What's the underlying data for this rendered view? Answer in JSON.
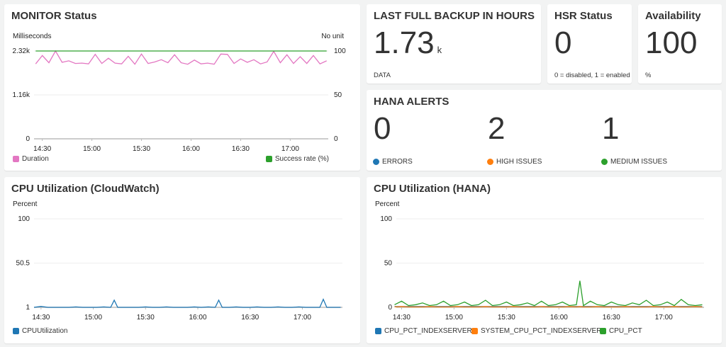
{
  "colors": {
    "pink": "#e377c2",
    "green": "#2ca02c",
    "blue": "#1f77b4",
    "orange": "#ff7f0e"
  },
  "monitor": {
    "title": "MONITOR Status",
    "left_unit": "Milliseconds",
    "right_unit": "No unit",
    "legend": [
      "Duration",
      "Success rate (%)"
    ]
  },
  "backup": {
    "title": "LAST FULL BACKUP IN HOURS",
    "value": "1.73",
    "unit": "k",
    "label": "DATA"
  },
  "hsr": {
    "title": "HSR Status",
    "value": "0",
    "label": "0 = disabled, 1 = enabled"
  },
  "availability": {
    "title": "Availability",
    "value": "100",
    "label": "%"
  },
  "alerts": {
    "title": "HANA ALERTS",
    "items": [
      {
        "value": "0",
        "label": "ERRORS",
        "color": "#1f77b4"
      },
      {
        "value": "2",
        "label": "HIGH ISSUES",
        "color": "#ff7f0e"
      },
      {
        "value": "1",
        "label": "MEDIUM ISSUES",
        "color": "#2ca02c"
      }
    ]
  },
  "cpu_cw": {
    "title": "CPU Utilization (CloudWatch)",
    "unit": "Percent",
    "legend": [
      "CPUUtilization"
    ]
  },
  "cpu_hana": {
    "title": "CPU Utilization (HANA)",
    "unit": "Percent",
    "legend": [
      "CPU_PCT_INDEXSERVER",
      "SYSTEM_CPU_PCT_INDEXSERVER",
      "CPU_PCT"
    ]
  },
  "chart_data": [
    {
      "type": "line",
      "title": "MONITOR Status",
      "ylabel": "Milliseconds",
      "y2label": "No unit",
      "ylim": [
        0,
        2320
      ],
      "y2lim": [
        0,
        100
      ],
      "yticks": [
        "0",
        "1.16k",
        "2.32k"
      ],
      "y2ticks": [
        "0",
        "50",
        "100"
      ],
      "xticks": [
        "14:30",
        "15:00",
        "15:30",
        "16:00",
        "16:30",
        "17:00"
      ],
      "legend": "bottom",
      "x": [
        "14:26",
        "14:30",
        "14:34",
        "14:38",
        "14:42",
        "14:46",
        "14:50",
        "14:54",
        "14:58",
        "15:02",
        "15:06",
        "15:10",
        "15:14",
        "15:18",
        "15:22",
        "15:26",
        "15:30",
        "15:34",
        "15:38",
        "15:42",
        "15:46",
        "15:50",
        "15:54",
        "15:58",
        "16:02",
        "16:06",
        "16:10",
        "16:14",
        "16:18",
        "16:22",
        "16:26",
        "16:30",
        "16:34",
        "16:38",
        "16:42",
        "16:46",
        "16:50",
        "16:54",
        "16:58",
        "17:02",
        "17:06",
        "17:10",
        "17:14",
        "17:18",
        "17:22"
      ],
      "series": [
        {
          "name": "Duration",
          "axis": "left",
          "values": [
            1980,
            2200,
            2010,
            2320,
            2020,
            2060,
            1990,
            2000,
            1980,
            2230,
            1990,
            2130,
            2000,
            1980,
            2180,
            1970,
            2240,
            1990,
            2030,
            2090,
            2010,
            2220,
            2010,
            1970,
            2080,
            1980,
            2000,
            1970,
            2240,
            2230,
            1990,
            2110,
            2020,
            2090,
            1980,
            2030,
            2310,
            2010,
            2220,
            1990,
            2170,
            1990,
            2200,
            1980,
            2060
          ]
        },
        {
          "name": "Success rate (%)",
          "axis": "right",
          "values": [
            100,
            100,
            100,
            100,
            100,
            100,
            100,
            100,
            100,
            100,
            100,
            100,
            100,
            100,
            100,
            100,
            100,
            100,
            100,
            100,
            100,
            100,
            100,
            100,
            100,
            100,
            100,
            100,
            100,
            100,
            100,
            100,
            100,
            100,
            100,
            100,
            100,
            100,
            100,
            100,
            100,
            100,
            100,
            100,
            100
          ]
        }
      ]
    },
    {
      "type": "line",
      "title": "CPU Utilization (CloudWatch)",
      "ylabel": "Percent",
      "ylim": [
        1,
        100
      ],
      "yticks": [
        "1",
        "50.5",
        "100"
      ],
      "xticks": [
        "14:30",
        "15:00",
        "15:30",
        "16:00",
        "16:30",
        "17:00"
      ],
      "legend": "bottom",
      "x": [
        "14:26",
        "14:30",
        "14:34",
        "14:38",
        "14:42",
        "14:46",
        "14:50",
        "14:54",
        "14:58",
        "15:02",
        "15:06",
        "15:10",
        "15:12",
        "15:14",
        "15:18",
        "15:22",
        "15:26",
        "15:30",
        "15:34",
        "15:38",
        "15:42",
        "15:46",
        "15:50",
        "15:54",
        "15:58",
        "16:02",
        "16:06",
        "16:10",
        "16:12",
        "16:14",
        "16:18",
        "16:22",
        "16:26",
        "16:30",
        "16:34",
        "16:38",
        "16:42",
        "16:46",
        "16:50",
        "16:54",
        "16:58",
        "17:02",
        "17:06",
        "17:10",
        "17:12",
        "17:14",
        "17:18",
        "17:22"
      ],
      "series": [
        {
          "name": "CPUUtilization",
          "values": [
            1,
            2,
            1,
            1,
            1,
            1,
            1.5,
            1,
            1,
            1,
            1.5,
            1,
            9,
            1,
            1,
            1,
            1,
            1.5,
            1,
            1,
            1.5,
            1,
            1,
            1,
            1.5,
            1,
            1.5,
            1,
            9,
            1,
            1,
            1.5,
            1,
            1,
            1.5,
            1,
            1,
            1.5,
            1,
            1,
            1.5,
            1,
            1,
            1,
            10,
            1,
            1,
            1
          ]
        }
      ]
    },
    {
      "type": "line",
      "title": "CPU Utilization (HANA)",
      "ylabel": "Percent",
      "ylim": [
        0,
        100
      ],
      "yticks": [
        "0",
        "50",
        "100"
      ],
      "xticks": [
        "14:30",
        "15:00",
        "15:30",
        "16:00",
        "16:30",
        "17:00"
      ],
      "legend": "bottom",
      "x": [
        "14:26",
        "14:30",
        "14:34",
        "14:38",
        "14:42",
        "14:46",
        "14:50",
        "14:54",
        "14:58",
        "15:02",
        "15:06",
        "15:10",
        "15:14",
        "15:18",
        "15:22",
        "15:26",
        "15:30",
        "15:34",
        "15:38",
        "15:42",
        "15:46",
        "15:50",
        "15:54",
        "15:58",
        "16:02",
        "16:06",
        "16:10",
        "16:12",
        "16:14",
        "16:18",
        "16:22",
        "16:26",
        "16:30",
        "16:34",
        "16:38",
        "16:42",
        "16:46",
        "16:50",
        "16:54",
        "16:58",
        "17:02",
        "17:06",
        "17:10",
        "17:14",
        "17:18",
        "17:22"
      ],
      "series": [
        {
          "name": "CPU_PCT_INDEXSERVER",
          "values": [
            1,
            1,
            1,
            1,
            1,
            1,
            1,
            1,
            1,
            1,
            1,
            1,
            1,
            1,
            1,
            1,
            1,
            1,
            1,
            1,
            1,
            1,
            1,
            1,
            1,
            1,
            1,
            1,
            1,
            1,
            1,
            1,
            1,
            1,
            1,
            1,
            1,
            1,
            1,
            1,
            1,
            1,
            1,
            1,
            1,
            1
          ]
        },
        {
          "name": "SYSTEM_CPU_PCT_INDEXSERVER",
          "values": [
            0.5,
            1,
            0.5,
            0.5,
            0.5,
            1,
            0.5,
            0.5,
            0.5,
            1,
            0.5,
            0.5,
            0.5,
            1,
            0.5,
            0.5,
            0.5,
            1,
            0.5,
            0.5,
            0.5,
            1,
            0.5,
            0.5,
            0.5,
            1,
            0.5,
            1,
            0.5,
            0.5,
            1,
            0.5,
            0.5,
            0.5,
            1,
            0.5,
            0.5,
            0.5,
            1,
            0.5,
            0.5,
            1,
            0.5,
            0.5,
            1,
            0.5
          ]
        },
        {
          "name": "CPU_PCT",
          "values": [
            3,
            7,
            2,
            3,
            5,
            2,
            3,
            7,
            2,
            3,
            6,
            2,
            3,
            8,
            2,
            3,
            6,
            2,
            3,
            5,
            2,
            7,
            2,
            3,
            6,
            2,
            3,
            30,
            2,
            7,
            3,
            2,
            6,
            3,
            2,
            5,
            3,
            8,
            2,
            3,
            6,
            2,
            9,
            3,
            2,
            3
          ]
        }
      ]
    }
  ]
}
